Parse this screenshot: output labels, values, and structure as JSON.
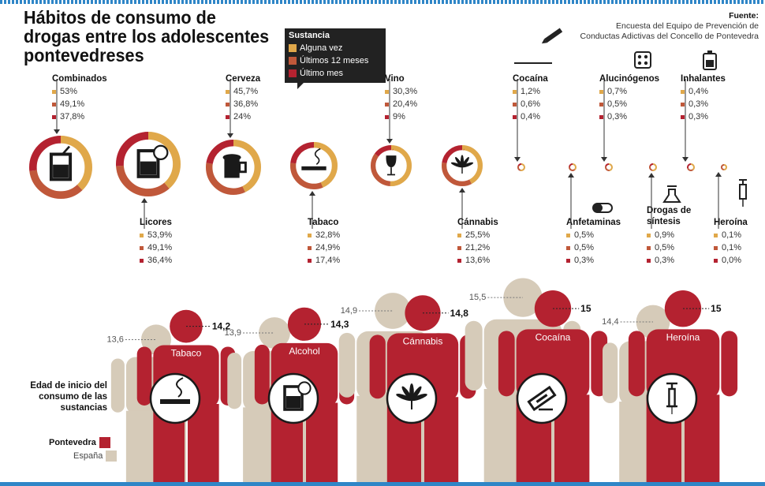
{
  "title": "Hábitos de consumo de drogas entre los adolescentes pontevedreses",
  "source": {
    "label": "Fuente:",
    "text": "Encuesta del Equipo de Prevención de Conductas Adictivas del Concello de Pontevedra"
  },
  "colors": {
    "alguna_vez": "#e0a84a",
    "ultimos_12_meses": "#c0583a",
    "ultimo_mes": "#b42230",
    "pontevedra": "#b42230",
    "espana": "#d6cbb9"
  },
  "chart_data": [
    {
      "type": "donut",
      "legend": {
        "title": "Sustancia",
        "items": [
          "Alguna vez",
          "Últimos 12 meses",
          "Último mes"
        ]
      },
      "series_names": [
        "Alguna vez",
        "Últimos 12 meses",
        "Último mes"
      ],
      "substances": [
        {
          "name": "Combinados",
          "labels": [
            "53%",
            "49,1%",
            "37,8%"
          ],
          "values": [
            53,
            49.1,
            37.8
          ],
          "icon": "cocktail-glass-icon"
        },
        {
          "name": "Licores",
          "labels": [
            "53,9%",
            "49,1%",
            "36,4%"
          ],
          "values": [
            53.9,
            49.1,
            36.4
          ],
          "icon": "liquor-glass-icon"
        },
        {
          "name": "Cerveza",
          "labels": [
            "45,7%",
            "36,8%",
            "24%"
          ],
          "values": [
            45.7,
            36.8,
            24
          ],
          "icon": "beer-mug-icon"
        },
        {
          "name": "Tabaco",
          "labels": [
            "32,8%",
            "24,9%",
            "17,4%"
          ],
          "values": [
            32.8,
            24.9,
            17.4
          ],
          "icon": "cigarette-icon"
        },
        {
          "name": "Vino",
          "labels": [
            "30,3%",
            "20,4%",
            "9%"
          ],
          "values": [
            30.3,
            20.4,
            9
          ],
          "icon": "wine-glass-icon"
        },
        {
          "name": "Cánnabis",
          "labels": [
            "25,5%",
            "21,2%",
            "13,6%"
          ],
          "values": [
            25.5,
            21.2,
            13.6
          ],
          "icon": "cannabis-leaf-icon"
        },
        {
          "name": "Cocaína",
          "labels": [
            "1,2%",
            "0,6%",
            "0,4%"
          ],
          "values": [
            1.2,
            0.6,
            0.4
          ],
          "icon": "razor-blade-icon"
        },
        {
          "name": "Anfetaminas",
          "labels": [
            "0,5%",
            "0,5%",
            "0,3%"
          ],
          "values": [
            0.5,
            0.5,
            0.3
          ],
          "icon": "pill-capsule-icon"
        },
        {
          "name": "Alucinógenos",
          "labels": [
            "0,7%",
            "0,5%",
            "0,3%"
          ],
          "values": [
            0.7,
            0.5,
            0.3
          ],
          "icon": "blotter-tabs-icon"
        },
        {
          "name": "Drogas de síntesis",
          "labels": [
            "0,9%",
            "0,5%",
            "0,3%"
          ],
          "values": [
            0.9,
            0.5,
            0.3
          ],
          "icon": "lab-flask-icon"
        },
        {
          "name": "Inhalantes",
          "labels": [
            "0,4%",
            "0,3%",
            "0,3%"
          ],
          "values": [
            0.4,
            0.3,
            0.3
          ],
          "icon": "spray-can-icon"
        },
        {
          "name": "Heroína",
          "labels": [
            "0,1%",
            "0,1%",
            "0,0%"
          ],
          "values": [
            0.1,
            0.1,
            0.0
          ],
          "icon": "syringe-icon"
        }
      ]
    },
    {
      "type": "pictogram-bar",
      "title": "Edad de inicio del consumo de las sustancias",
      "legend": [
        "Pontevedra",
        "España"
      ],
      "categories": [
        "Tabaco",
        "Alcohol",
        "Cánnabis",
        "Cocaína",
        "Heroína"
      ],
      "series": [
        {
          "name": "Pontevedra",
          "values": [
            14.2,
            14.3,
            14.8,
            15,
            15
          ],
          "labels": [
            "14,2",
            "14,3",
            "14,8",
            "15",
            "15"
          ]
        },
        {
          "name": "España",
          "values": [
            13.6,
            13.9,
            14.9,
            15.5,
            14.4
          ],
          "labels": [
            "13,6",
            "13,9",
            "14,9",
            "15,5",
            "14,4"
          ]
        }
      ],
      "icons": [
        "cigarette-icon",
        "liquor-glass-icon",
        "cannabis-leaf-icon",
        "razor-blade-icon",
        "syringe-icon"
      ]
    }
  ]
}
